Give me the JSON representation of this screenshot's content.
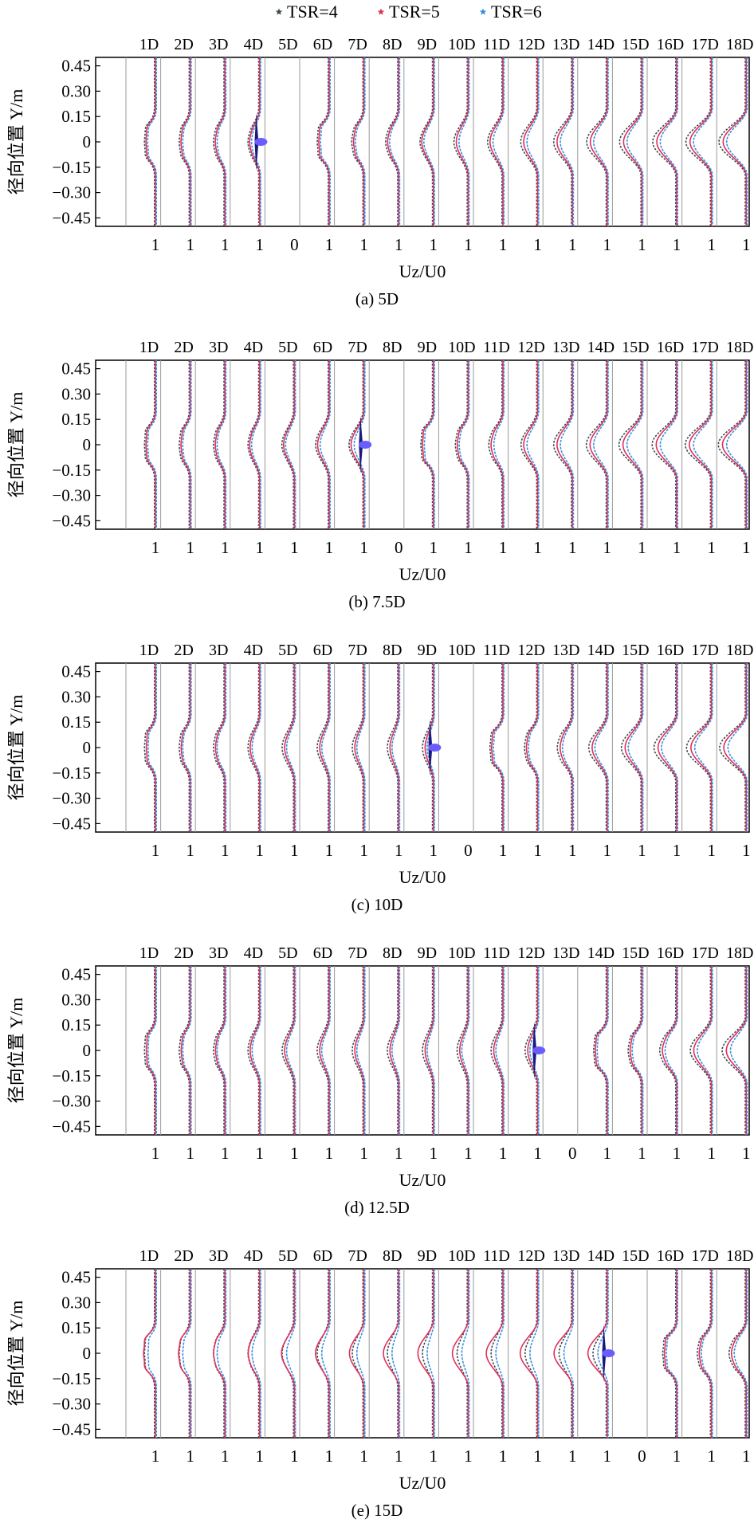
{
  "legend": {
    "placement": "top-center",
    "entries": [
      {
        "label": "TSR=4",
        "color": "#3d4a4f",
        "marker": "star"
      },
      {
        "label": "TSR=5",
        "color": "#e0305a",
        "marker": "star"
      },
      {
        "label": "TSR=6",
        "color": "#3a8fe0",
        "marker": "star"
      }
    ]
  },
  "chart_data": [
    {
      "type": "line",
      "caption": "(a) 5D",
      "xlabel": "Uz/U0",
      "ylabel": "径向位置 Y/m",
      "yticks": [
        "0.45",
        "0.30",
        "0.15",
        "0",
        "−0.15",
        "−0.30",
        "−0.45"
      ],
      "ylim": [
        -0.5,
        0.5
      ],
      "stations": [
        "1D",
        "2D",
        "3D",
        "4D",
        "5D",
        "6D",
        "7D",
        "8D",
        "9D",
        "10D",
        "11D",
        "12D",
        "13D",
        "14D",
        "15D",
        "16D",
        "17D",
        "18D"
      ],
      "turbine_station": "5D",
      "ref_labels": [
        "1",
        "1",
        "1",
        "1",
        "0",
        "1",
        "1",
        "1",
        "1",
        "1",
        "1",
        "1",
        "1",
        "1",
        "1",
        "1",
        "1",
        "1"
      ],
      "series": [
        {
          "name": "TSR=4",
          "deficit": [
            0.55,
            0.5,
            0.48,
            0.45,
            0.0,
            0.55,
            0.5,
            0.48,
            0.45,
            0.47,
            0.5,
            0.55,
            0.6,
            0.65,
            0.7,
            0.74,
            0.78,
            0.82
          ]
        },
        {
          "name": "TSR=5",
          "deficit": [
            0.52,
            0.46,
            0.44,
            0.42,
            0.0,
            0.52,
            0.46,
            0.44,
            0.42,
            0.42,
            0.45,
            0.48,
            0.52,
            0.56,
            0.6,
            0.64,
            0.68,
            0.72
          ]
        },
        {
          "name": "TSR=6",
          "deficit": [
            0.48,
            0.42,
            0.4,
            0.38,
            0.0,
            0.48,
            0.42,
            0.4,
            0.38,
            0.36,
            0.38,
            0.4,
            0.44,
            0.48,
            0.52,
            0.56,
            0.6,
            0.64
          ]
        }
      ],
      "grid": false
    },
    {
      "type": "line",
      "caption": "(b) 7.5D",
      "xlabel": "Uz/U0",
      "ylabel": "径向位置 Y/m",
      "yticks": [
        "0.45",
        "0.30",
        "0.15",
        "0",
        "−0.15",
        "−0.30",
        "−0.45"
      ],
      "ylim": [
        -0.5,
        0.5
      ],
      "stations": [
        "1D",
        "2D",
        "3D",
        "4D",
        "5D",
        "6D",
        "7D",
        "8D",
        "9D",
        "10D",
        "11D",
        "12D",
        "13D",
        "14D",
        "15D",
        "16D",
        "17D",
        "18D"
      ],
      "turbine_station": "8D",
      "ref_labels": [
        "1",
        "1",
        "1",
        "1",
        "1",
        "1",
        "1",
        "0",
        "1",
        "1",
        "1",
        "1",
        "1",
        "1",
        "1",
        "1",
        "1",
        "1"
      ],
      "series": [
        {
          "name": "TSR=4",
          "deficit": [
            0.55,
            0.5,
            0.48,
            0.45,
            0.45,
            0.48,
            0.52,
            0.0,
            0.55,
            0.5,
            0.5,
            0.54,
            0.6,
            0.66,
            0.72,
            0.76,
            0.8,
            0.84
          ]
        },
        {
          "name": "TSR=5",
          "deficit": [
            0.52,
            0.46,
            0.44,
            0.42,
            0.42,
            0.44,
            0.48,
            0.0,
            0.52,
            0.46,
            0.45,
            0.48,
            0.52,
            0.57,
            0.62,
            0.66,
            0.7,
            0.74
          ]
        },
        {
          "name": "TSR=6",
          "deficit": [
            0.48,
            0.42,
            0.4,
            0.38,
            0.38,
            0.38,
            0.4,
            0.0,
            0.48,
            0.42,
            0.38,
            0.4,
            0.44,
            0.48,
            0.52,
            0.56,
            0.6,
            0.64
          ]
        }
      ],
      "grid": false
    },
    {
      "type": "line",
      "caption": "(c) 10D",
      "xlabel": "Uz/U0",
      "ylabel": "径向位置 Y/m",
      "yticks": [
        "0.45",
        "0.30",
        "0.15",
        "0",
        "−0.15",
        "−0.30",
        "−0.45"
      ],
      "ylim": [
        -0.5,
        0.5
      ],
      "stations": [
        "1D",
        "2D",
        "3D",
        "4D",
        "5D",
        "6D",
        "7D",
        "8D",
        "9D",
        "10D",
        "11D",
        "12D",
        "13D",
        "14D",
        "15D",
        "16D",
        "17D",
        "18D"
      ],
      "turbine_station": "10D",
      "ref_labels": [
        "1",
        "1",
        "1",
        "1",
        "1",
        "1",
        "1",
        "1",
        "1",
        "0",
        "1",
        "1",
        "1",
        "1",
        "1",
        "1",
        "1",
        "1"
      ],
      "series": [
        {
          "name": "TSR=4",
          "deficit": [
            0.55,
            0.5,
            0.48,
            0.45,
            0.44,
            0.42,
            0.4,
            0.38,
            0.36,
            0.0,
            0.55,
            0.5,
            0.52,
            0.58,
            0.64,
            0.7,
            0.76,
            0.8
          ]
        },
        {
          "name": "TSR=5",
          "deficit": [
            0.5,
            0.45,
            0.43,
            0.4,
            0.38,
            0.36,
            0.34,
            0.32,
            0.3,
            0.0,
            0.52,
            0.46,
            0.45,
            0.5,
            0.55,
            0.6,
            0.65,
            0.7
          ]
        },
        {
          "name": "TSR=6",
          "deficit": [
            0.46,
            0.42,
            0.4,
            0.36,
            0.34,
            0.32,
            0.3,
            0.28,
            0.26,
            0.0,
            0.48,
            0.42,
            0.4,
            0.44,
            0.48,
            0.52,
            0.56,
            0.6
          ]
        }
      ],
      "grid": false
    },
    {
      "type": "line",
      "caption": "(d) 12.5D",
      "xlabel": "Uz/U0",
      "ylabel": "径向位置 Y/m",
      "yticks": [
        "0.45",
        "0.30",
        "0.15",
        "0",
        "−0.15",
        "−0.30",
        "−0.45"
      ],
      "ylim": [
        -0.5,
        0.5
      ],
      "stations": [
        "1D",
        "2D",
        "3D",
        "4D",
        "5D",
        "6D",
        "7D",
        "8D",
        "9D",
        "10D",
        "11D",
        "12D",
        "13D",
        "14D",
        "15D",
        "16D",
        "17D",
        "18D"
      ],
      "turbine_station": "13D",
      "ref_labels": [
        "1",
        "1",
        "1",
        "1",
        "1",
        "1",
        "1",
        "1",
        "1",
        "1",
        "1",
        "1",
        "0",
        "1",
        "1",
        "1",
        "1",
        "1"
      ],
      "series": [
        {
          "name": "TSR=4",
          "deficit": [
            0.55,
            0.5,
            0.48,
            0.45,
            0.44,
            0.42,
            0.4,
            0.38,
            0.36,
            0.36,
            0.38,
            0.4,
            0.0,
            0.55,
            0.5,
            0.56,
            0.64,
            0.72
          ]
        },
        {
          "name": "TSR=5",
          "deficit": [
            0.5,
            0.45,
            0.43,
            0.4,
            0.38,
            0.36,
            0.34,
            0.32,
            0.3,
            0.3,
            0.32,
            0.34,
            0.0,
            0.52,
            0.46,
            0.5,
            0.56,
            0.62
          ]
        },
        {
          "name": "TSR=6",
          "deficit": [
            0.46,
            0.42,
            0.4,
            0.36,
            0.34,
            0.32,
            0.3,
            0.28,
            0.26,
            0.26,
            0.28,
            0.3,
            0.0,
            0.48,
            0.42,
            0.44,
            0.48,
            0.52
          ]
        }
      ],
      "grid": false
    },
    {
      "type": "line",
      "caption": "(e) 15D",
      "xlabel": "Uz/U0",
      "ylabel": "径向位置 Y/m",
      "yticks": [
        "0.45",
        "0.30",
        "0.15",
        "0",
        "−0.15",
        "−0.30",
        "−0.45"
      ],
      "ylim": [
        -0.5,
        0.5
      ],
      "stations": [
        "1D",
        "2D",
        "3D",
        "4D",
        "5D",
        "6D",
        "7D",
        "8D",
        "9D",
        "10D",
        "11D",
        "12D",
        "13D",
        "14D",
        "15D",
        "16D",
        "17D",
        "18D"
      ],
      "turbine_station": "15D",
      "ref_labels": [
        "1",
        "1",
        "1",
        "1",
        "1",
        "1",
        "1",
        "1",
        "1",
        "1",
        "1",
        "1",
        "1",
        "1",
        "0",
        "1",
        "1",
        "1"
      ],
      "series": [
        {
          "name": "TSR=4",
          "deficit": [
            0.55,
            0.5,
            0.48,
            0.45,
            0.44,
            0.42,
            0.4,
            0.38,
            0.36,
            0.36,
            0.38,
            0.4,
            0.42,
            0.44,
            0.0,
            0.55,
            0.5,
            0.55
          ]
        },
        {
          "name": "TSR=5",
          "deficit": [
            0.65,
            0.58,
            0.52,
            0.48,
            0.5,
            0.52,
            0.54,
            0.56,
            0.56,
            0.56,
            0.58,
            0.6,
            0.62,
            0.64,
            0.0,
            0.52,
            0.46,
            0.5
          ]
        },
        {
          "name": "TSR=6",
          "deficit": [
            0.46,
            0.42,
            0.4,
            0.36,
            0.34,
            0.32,
            0.3,
            0.28,
            0.26,
            0.26,
            0.28,
            0.3,
            0.32,
            0.34,
            0.0,
            0.48,
            0.42,
            0.44
          ]
        }
      ],
      "grid": false
    }
  ]
}
